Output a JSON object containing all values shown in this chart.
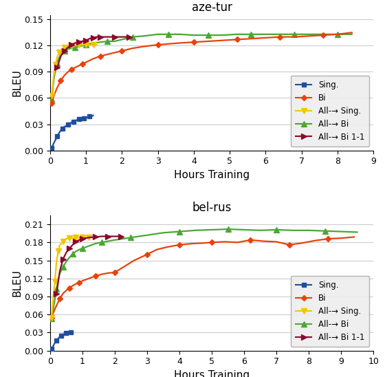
{
  "title1": "aze-tur",
  "title2": "bel-rus",
  "xlabel": "Hours Training",
  "ylabel": "BLEU",
  "legend_labels": [
    "Sing.",
    "Bi",
    "All-→ Sing.",
    "All-→ Bi",
    "All-→ Bi 1-1"
  ],
  "colors": [
    "#1f4e9e",
    "#e8420a",
    "#f5c400",
    "#4aa832",
    "#8b0a2a"
  ],
  "aze_tur": {
    "xlim": [
      0,
      9
    ],
    "ylim": [
      0,
      0.155
    ],
    "yticks": [
      0,
      0.03,
      0.06,
      0.09,
      0.12,
      0.15
    ],
    "xticks": [
      0,
      1,
      2,
      3,
      4,
      5,
      6,
      7,
      8,
      9
    ],
    "sing_x": [
      0.05,
      0.1,
      0.15,
      0.2,
      0.25,
      0.3,
      0.35,
      0.4,
      0.45,
      0.5,
      0.55,
      0.6,
      0.65,
      0.7,
      0.75,
      0.8,
      0.85,
      0.9,
      0.95,
      1.0,
      1.05,
      1.1,
      1.15,
      1.2
    ],
    "sing_y": [
      0.003,
      0.008,
      0.012,
      0.016,
      0.02,
      0.023,
      0.025,
      0.027,
      0.028,
      0.03,
      0.031,
      0.032,
      0.033,
      0.034,
      0.035,
      0.036,
      0.036,
      0.037,
      0.037,
      0.038,
      0.038,
      0.039,
      0.039,
      0.04
    ],
    "bi_x": [
      0.05,
      0.1,
      0.2,
      0.3,
      0.4,
      0.5,
      0.6,
      0.7,
      0.8,
      0.9,
      1.0,
      1.2,
      1.4,
      1.6,
      1.8,
      2.0,
      2.3,
      2.6,
      3.0,
      3.3,
      3.6,
      4.0,
      4.4,
      4.8,
      5.2,
      5.6,
      6.0,
      6.4,
      6.8,
      7.2,
      7.6,
      8.0,
      8.4
    ],
    "bi_y": [
      0.054,
      0.062,
      0.072,
      0.08,
      0.086,
      0.09,
      0.093,
      0.095,
      0.097,
      0.099,
      0.101,
      0.105,
      0.108,
      0.11,
      0.112,
      0.114,
      0.117,
      0.119,
      0.121,
      0.122,
      0.123,
      0.124,
      0.125,
      0.126,
      0.127,
      0.128,
      0.129,
      0.13,
      0.13,
      0.131,
      0.132,
      0.133,
      0.135
    ],
    "allsing_x": [
      0.05,
      0.1,
      0.15,
      0.2,
      0.25,
      0.3,
      0.4,
      0.5,
      0.6,
      0.7,
      0.8,
      0.9,
      1.0,
      1.1,
      1.2,
      1.3
    ],
    "allsing_y": [
      0.063,
      0.085,
      0.098,
      0.107,
      0.112,
      0.115,
      0.118,
      0.119,
      0.12,
      0.12,
      0.121,
      0.121,
      0.121,
      0.121,
      0.121,
      0.121
    ],
    "allbi_x": [
      0.05,
      0.1,
      0.15,
      0.2,
      0.25,
      0.3,
      0.4,
      0.5,
      0.6,
      0.7,
      0.8,
      0.9,
      1.0,
      1.2,
      1.4,
      1.6,
      1.8,
      2.0,
      2.3,
      2.6,
      3.0,
      3.3,
      3.6,
      4.0,
      4.4,
      4.8,
      5.2,
      5.6,
      6.0,
      6.4,
      6.8,
      7.2,
      7.6,
      8.0,
      8.4
    ],
    "allbi_y": [
      0.059,
      0.08,
      0.092,
      0.1,
      0.106,
      0.11,
      0.114,
      0.116,
      0.117,
      0.118,
      0.119,
      0.12,
      0.121,
      0.123,
      0.124,
      0.125,
      0.125,
      0.127,
      0.13,
      0.131,
      0.133,
      0.133,
      0.133,
      0.132,
      0.132,
      0.132,
      0.133,
      0.133,
      0.133,
      0.133,
      0.133,
      0.133,
      0.133,
      0.133,
      0.133
    ],
    "allbi11_x": [
      0.2,
      0.3,
      0.4,
      0.5,
      0.6,
      0.7,
      0.8,
      0.9,
      1.0,
      1.1,
      1.2,
      1.3,
      1.4,
      1.6,
      1.8,
      2.0,
      2.2
    ],
    "allbi11_y": [
      0.095,
      0.108,
      0.114,
      0.118,
      0.121,
      0.123,
      0.124,
      0.125,
      0.126,
      0.128,
      0.129,
      0.13,
      0.13,
      0.13,
      0.13,
      0.13,
      0.13
    ]
  },
  "bel_rus": {
    "xlim": [
      0,
      10
    ],
    "ylim": [
      0,
      0.225
    ],
    "yticks": [
      0,
      0.03,
      0.06,
      0.09,
      0.12,
      0.15,
      0.18,
      0.21
    ],
    "xticks": [
      0,
      1,
      2,
      3,
      4,
      5,
      6,
      7,
      8,
      9,
      10
    ],
    "sing_x": [
      0.05,
      0.1,
      0.15,
      0.2,
      0.25,
      0.3,
      0.35,
      0.4,
      0.45,
      0.5,
      0.55,
      0.6,
      0.65,
      0.7
    ],
    "sing_y": [
      0.003,
      0.008,
      0.013,
      0.017,
      0.02,
      0.023,
      0.025,
      0.027,
      0.028,
      0.029,
      0.03,
      0.031,
      0.031,
      0.032
    ],
    "bi_x": [
      0.05,
      0.1,
      0.2,
      0.3,
      0.4,
      0.5,
      0.6,
      0.7,
      0.8,
      0.9,
      1.0,
      1.2,
      1.4,
      1.6,
      1.8,
      2.0,
      2.3,
      2.6,
      3.0,
      3.3,
      3.6,
      4.0,
      4.4,
      4.8,
      5.0,
      5.4,
      5.8,
      6.2,
      6.6,
      7.0,
      7.4,
      7.8,
      8.2,
      8.6,
      9.0,
      9.4
    ],
    "bi_y": [
      0.055,
      0.063,
      0.075,
      0.086,
      0.095,
      0.1,
      0.104,
      0.108,
      0.111,
      0.113,
      0.116,
      0.12,
      0.124,
      0.127,
      0.129,
      0.13,
      0.14,
      0.15,
      0.16,
      0.168,
      0.172,
      0.176,
      0.178,
      0.179,
      0.18,
      0.181,
      0.18,
      0.184,
      0.182,
      0.181,
      0.176,
      0.179,
      0.183,
      0.186,
      0.187,
      0.189
    ],
    "allsing_x": [
      0.05,
      0.1,
      0.15,
      0.2,
      0.25,
      0.3,
      0.4,
      0.5,
      0.6,
      0.7,
      0.8,
      0.9,
      1.0,
      1.1,
      1.2
    ],
    "allsing_y": [
      0.055,
      0.09,
      0.115,
      0.148,
      0.165,
      0.175,
      0.182,
      0.186,
      0.187,
      0.187,
      0.188,
      0.188,
      0.188,
      0.188,
      0.188
    ],
    "allbi_x": [
      0.05,
      0.1,
      0.15,
      0.2,
      0.25,
      0.3,
      0.4,
      0.5,
      0.6,
      0.7,
      0.8,
      0.9,
      1.0,
      1.2,
      1.4,
      1.6,
      1.8,
      2.0,
      2.5,
      3.0,
      3.5,
      4.0,
      4.5,
      5.0,
      5.5,
      6.0,
      6.5,
      7.0,
      7.5,
      8.0,
      8.5,
      9.0,
      9.5
    ],
    "allbi_y": [
      0.053,
      0.069,
      0.086,
      0.102,
      0.118,
      0.128,
      0.139,
      0.148,
      0.155,
      0.161,
      0.165,
      0.168,
      0.17,
      0.174,
      0.178,
      0.18,
      0.182,
      0.184,
      0.188,
      0.192,
      0.196,
      0.198,
      0.2,
      0.201,
      0.202,
      0.201,
      0.2,
      0.201,
      0.2,
      0.2,
      0.199,
      0.198,
      0.197
    ],
    "allbi11_x": [
      0.2,
      0.3,
      0.4,
      0.5,
      0.6,
      0.7,
      0.8,
      0.9,
      1.0,
      1.2,
      1.4,
      1.6,
      1.8,
      2.0,
      2.2
    ],
    "allbi11_y": [
      0.095,
      0.132,
      0.152,
      0.163,
      0.17,
      0.176,
      0.181,
      0.184,
      0.186,
      0.188,
      0.189,
      0.19,
      0.19,
      0.19,
      0.19
    ]
  }
}
